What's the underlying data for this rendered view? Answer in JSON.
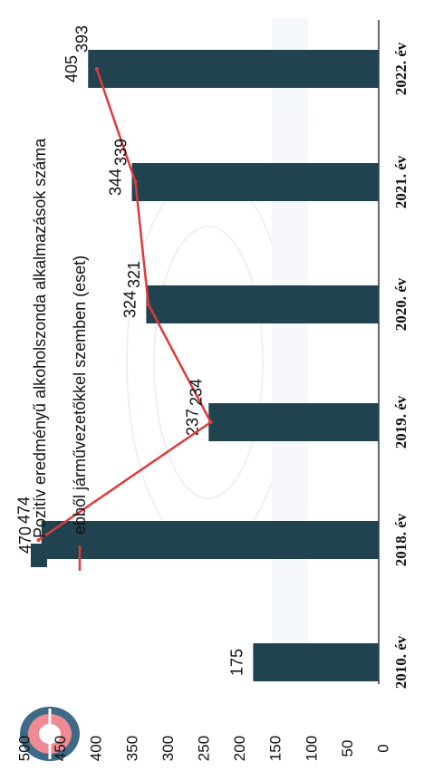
{
  "chart_data": {
    "type": "bar",
    "orientation": "rotated-90-clockwise",
    "categories": [
      "2010. év",
      "2018. év",
      "2019. év",
      "2020. év",
      "2021. év",
      "2022. év"
    ],
    "series": [
      {
        "name": "Pozitív eredményű alkoholszonda alkalmazások száma",
        "type": "bar",
        "color": "#21424f",
        "values": [
          175,
          470,
          237,
          324,
          344,
          405
        ]
      },
      {
        "name": "ebből járművezetőkkel szemben (eset)",
        "type": "line",
        "color": "#e03a3a",
        "values": [
          null,
          474,
          234,
          321,
          339,
          393
        ]
      }
    ],
    "bar_labels": [
      "175",
      "470",
      "237",
      "324",
      "344",
      "405"
    ],
    "line_labels": [
      "",
      "474",
      "234",
      "321",
      "339",
      "393"
    ],
    "yticks": [
      "0",
      "50",
      "100",
      "150",
      "200",
      "250",
      "300",
      "350",
      "400",
      "450",
      "500"
    ],
    "ylim": [
      0,
      500
    ],
    "grid": false,
    "legend_position": "top"
  }
}
